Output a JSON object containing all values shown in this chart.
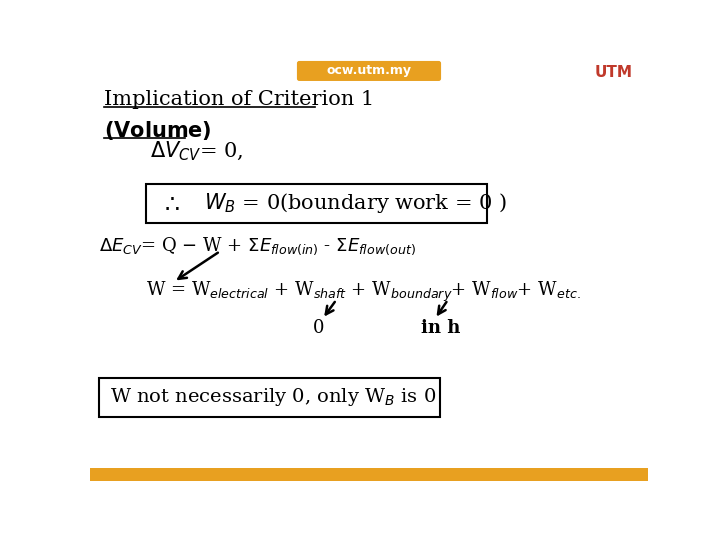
{
  "bg_color": "#ffffff",
  "header_bar_color": "#e8a020",
  "header_text": "ocw.utm.my",
  "title": "Implication of Criterion 1",
  "font_size_title": 15,
  "font_size_main": 13,
  "font_size_small": 11
}
